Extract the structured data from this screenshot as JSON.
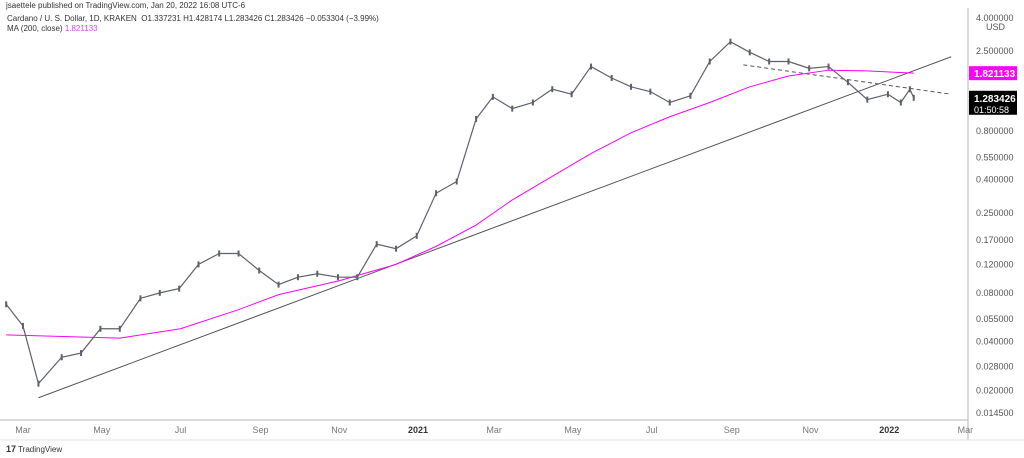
{
  "publisher_line": "jsaettele published on TradingView.com, Jan 20, 2022 16:08 UTC-6",
  "legend": {
    "symbol": "Cardano / U. S. Dollar, 1D, KRAKEN",
    "ohlc": "O1.337231 H1.428174 L1.283426 C1.283426 −0.053304 (−3.99%)",
    "ma_label": "MA (200, close)",
    "ma_value": "1.821133"
  },
  "footer": {
    "logo_icon": "tradingview-logo-icon",
    "brand": "TradingView"
  },
  "colors": {
    "price": "#5d606b",
    "ma": "#ff00ff",
    "trendline": "#555555",
    "last_price_bg": "#000000",
    "ma_label_bg": "#ff00ff"
  },
  "chart_data": {
    "type": "line",
    "y_scale": "log",
    "ylim": [
      0.0145,
      4.0
    ],
    "currency": "USD",
    "y_ticks": [
      "4.000000",
      "2.500000",
      "0.800000",
      "0.550000",
      "0.400000",
      "0.250000",
      "0.170000",
      "0.120000",
      "0.080000",
      "0.055000",
      "0.040000",
      "0.028000",
      "0.020000",
      "0.014500"
    ],
    "y_tick_values": [
      4.0,
      2.5,
      0.8,
      0.55,
      0.4,
      0.25,
      0.17,
      0.12,
      0.08,
      0.055,
      0.04,
      0.028,
      0.02,
      0.0145
    ],
    "x_ticks": [
      "Mar",
      "May",
      "Jul",
      "Sep",
      "Nov",
      "2021",
      "Mar",
      "May",
      "Jul",
      "Sep",
      "Nov",
      "2022",
      "Mar"
    ],
    "x_tick_dates": [
      "2020-03-01",
      "2020-05-01",
      "2020-07-01",
      "2020-09-01",
      "2020-11-01",
      "2021-01-01",
      "2021-03-01",
      "2021-05-01",
      "2021-07-01",
      "2021-09-01",
      "2021-11-01",
      "2022-01-01",
      "2022-03-01"
    ],
    "last_price_label": "1.283426",
    "countdown_label": "01:50:58",
    "ma_price_label": "1.821133",
    "series": [
      {
        "key": "price",
        "dates": [
          "2020-02-17",
          "2020-03-01",
          "2020-03-13",
          "2020-03-31",
          "2020-04-15",
          "2020-04-30",
          "2020-05-15",
          "2020-05-31",
          "2020-06-15",
          "2020-06-30",
          "2020-07-15",
          "2020-07-31",
          "2020-08-15",
          "2020-08-31",
          "2020-09-15",
          "2020-09-30",
          "2020-10-15",
          "2020-10-31",
          "2020-11-15",
          "2020-11-30",
          "2020-12-15",
          "2020-12-31",
          "2021-01-15",
          "2021-01-31",
          "2021-02-15",
          "2021-02-28",
          "2021-03-15",
          "2021-03-31",
          "2021-04-15",
          "2021-04-30",
          "2021-05-15",
          "2021-05-31",
          "2021-06-15",
          "2021-06-30",
          "2021-07-15",
          "2021-07-31",
          "2021-08-15",
          "2021-08-31",
          "2021-09-15",
          "2021-09-30",
          "2021-10-15",
          "2021-10-31",
          "2021-11-15",
          "2021-11-30",
          "2021-12-15",
          "2021-12-31",
          "2022-01-10",
          "2022-01-17",
          "2022-01-20"
        ],
        "values": [
          0.068,
          0.05,
          0.022,
          0.032,
          0.034,
          0.048,
          0.048,
          0.074,
          0.08,
          0.085,
          0.12,
          0.14,
          0.14,
          0.11,
          0.09,
          0.1,
          0.105,
          0.1,
          0.1,
          0.16,
          0.15,
          0.18,
          0.33,
          0.39,
          0.95,
          1.3,
          1.1,
          1.2,
          1.45,
          1.35,
          2.0,
          1.7,
          1.5,
          1.4,
          1.2,
          1.32,
          2.15,
          2.85,
          2.45,
          2.15,
          2.15,
          1.95,
          2.0,
          1.6,
          1.25,
          1.35,
          1.2,
          1.45,
          1.283
        ]
      },
      {
        "key": "ma",
        "name": "MA (200, close)",
        "dates": [
          "2020-02-17",
          "2020-04-01",
          "2020-05-15",
          "2020-07-01",
          "2020-08-15",
          "2020-09-15",
          "2020-11-01",
          "2020-12-15",
          "2021-01-15",
          "2021-02-15",
          "2021-03-15",
          "2021-04-15",
          "2021-05-15",
          "2021-06-15",
          "2021-07-15",
          "2021-08-15",
          "2021-09-15",
          "2021-10-15",
          "2021-11-15",
          "2021-12-15",
          "2022-01-20"
        ],
        "values": [
          0.044,
          0.043,
          0.042,
          0.048,
          0.063,
          0.078,
          0.095,
          0.12,
          0.155,
          0.21,
          0.3,
          0.42,
          0.58,
          0.78,
          0.98,
          1.2,
          1.5,
          1.75,
          1.9,
          1.88,
          1.821
        ]
      }
    ],
    "trendlines": [
      {
        "style": "solid",
        "points": [
          [
            "2020-03-13",
            0.018
          ],
          [
            "2022-02-18",
            2.3
          ]
        ]
      },
      {
        "style": "dashed",
        "points": [
          [
            "2021-09-10",
            2.05
          ],
          [
            "2022-02-18",
            1.35
          ]
        ]
      }
    ]
  }
}
